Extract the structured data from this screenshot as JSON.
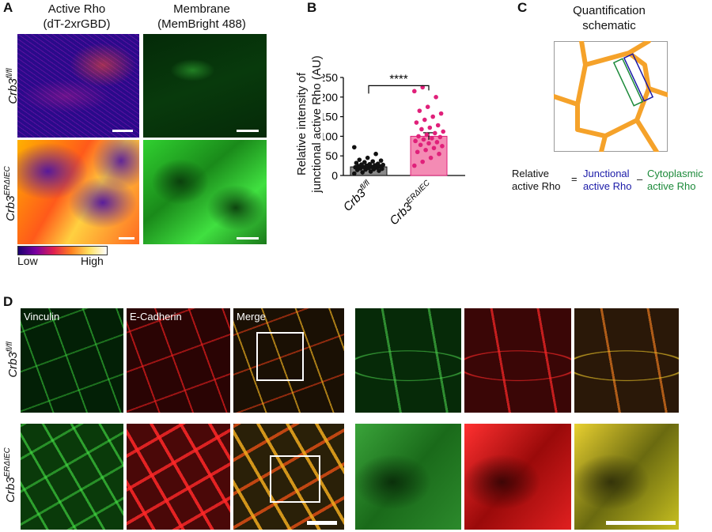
{
  "panels": {
    "A": "A",
    "B": "B",
    "C": "C",
    "D": "D"
  },
  "panel_a": {
    "col1_title_line1": "Active Rho",
    "col1_title_line2": "(dT-2xrGBD)",
    "col2_title_line1": "Membrane",
    "col2_title_line2": "(MemBright 488)",
    "row1_label_base": "Crb3",
    "row1_label_sup": "fl/fl",
    "row2_label_base": "Crb3",
    "row2_label_sup": "ERΔIEC",
    "colorbar_low": "Low",
    "colorbar_high": "High"
  },
  "panel_c": {
    "title_line1": "Quantification",
    "title_line2": "schematic",
    "eq_left_line1": "Relative",
    "eq_left_line2": "active Rho",
    "eq_equals": "=",
    "eq_junc_line1": "Junctional",
    "eq_junc_line2": "active Rho",
    "eq_minus": "–",
    "eq_cyto_line1": "Cytoplasmic",
    "eq_cyto_line2": "active Rho",
    "colors": {
      "cell_border": "#f5a22a",
      "junctional": "#1a1aa8",
      "cytoplasmic": "#1c8a3a"
    }
  },
  "panel_d": {
    "channel_vinculin": "Vinculin",
    "channel_ecad": "E-Cadherin",
    "channel_merge": "Merge",
    "row1_label_base": "Crb3",
    "row1_label_sup": "fl/fl",
    "row2_label_base": "Crb3",
    "row2_label_sup": "ERΔIEC"
  },
  "chart_data": {
    "type": "bar",
    "ylabel_line1": "Relative intensity of",
    "ylabel_line2": "junctional active Rho (AU)",
    "ylim": [
      0,
      250
    ],
    "yticks": [
      0,
      50,
      100,
      150,
      200,
      250
    ],
    "significance": "****",
    "categories": [
      {
        "base": "Crb3",
        "sup": "fl/fl"
      },
      {
        "base": "Crb3",
        "sup": "ERΔIEC"
      }
    ],
    "series": [
      {
        "values": [
          22,
          100
        ],
        "sem": [
          3,
          9
        ],
        "bar_colors": [
          "#8a8a8a",
          "#f48bb4"
        ],
        "point_colors": [
          "#111111",
          "#e0207a"
        ]
      }
    ],
    "points": [
      [
        5,
        8,
        10,
        12,
        14,
        15,
        16,
        17,
        18,
        19,
        20,
        21,
        22,
        22,
        23,
        24,
        25,
        26,
        27,
        28,
        29,
        30,
        32,
        34,
        36,
        38,
        40,
        45,
        55,
        72
      ],
      [
        25,
        35,
        45,
        55,
        60,
        65,
        70,
        75,
        78,
        82,
        85,
        88,
        92,
        95,
        98,
        100,
        104,
        108,
        112,
        118,
        122,
        128,
        135,
        142,
        150,
        158,
        165,
        175,
        200,
        215,
        225
      ]
    ]
  }
}
